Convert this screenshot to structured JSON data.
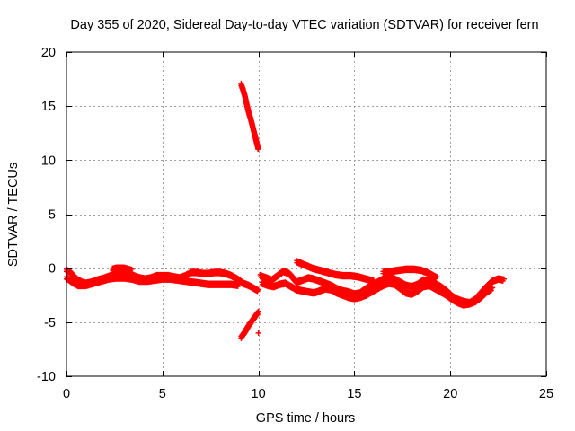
{
  "chart_data": {
    "type": "scatter",
    "title": "Day 355 of 2020, Sidereal Day-to-day VTEC variation (SDTVAR) for receiver fern",
    "xlabel": "GPS time / hours",
    "ylabel": "SDTVAR / TECUs",
    "xlim": [
      0,
      25
    ],
    "ylim": [
      -10,
      20
    ],
    "xticks": [
      0,
      5,
      10,
      15,
      20,
      25
    ],
    "yticks": [
      -10,
      -5,
      0,
      5,
      10,
      15,
      20
    ],
    "grid": true,
    "legend": "none",
    "marker": "+",
    "colors": {
      "series": "#ff0000",
      "axis": "#000000",
      "grid": "#a0a0a0"
    },
    "series": [
      {
        "name": "SDTVAR",
        "tracks": [
          {
            "x": [
              0.0,
              0.2,
              0.4,
              0.6,
              0.8,
              1.0,
              1.3,
              1.6,
              2.0,
              2.3,
              2.6,
              2.9,
              3.2,
              3.5,
              3.8,
              4.1,
              4.4,
              4.7,
              5.0,
              5.3,
              5.6,
              5.9,
              6.2,
              6.5,
              6.8,
              7.1,
              7.4,
              7.7,
              8.0,
              8.3,
              8.6,
              8.9,
              9.2,
              9.5,
              9.8,
              10.0
            ],
            "y": [
              -0.1,
              -0.3,
              -0.7,
              -1.0,
              -1.2,
              -1.3,
              -1.2,
              -1.0,
              -0.8,
              -0.6,
              -0.4,
              -0.3,
              -0.5,
              -0.6,
              -0.8,
              -0.9,
              -0.8,
              -0.6,
              -0.6,
              -0.6,
              -0.7,
              -0.8,
              -0.6,
              -0.3,
              -0.3,
              -0.4,
              -0.4,
              -0.3,
              -0.3,
              -0.4,
              -0.6,
              -0.9,
              -1.3,
              -1.5,
              -1.8,
              -2.0
            ]
          },
          {
            "x": [
              0.0,
              0.3,
              0.6,
              1.0,
              1.4,
              1.8,
              2.2,
              2.6,
              3.0,
              3.4,
              3.8,
              4.2,
              4.6,
              5.0,
              5.4,
              5.8,
              6.2,
              6.6,
              7.0,
              7.4,
              7.8,
              8.2,
              8.6,
              9.0
            ],
            "y": [
              -0.8,
              -1.2,
              -1.5,
              -1.5,
              -1.3,
              -1.1,
              -0.9,
              -0.8,
              -0.8,
              -0.9,
              -1.1,
              -1.1,
              -1.0,
              -0.9,
              -0.9,
              -1.0,
              -1.1,
              -1.2,
              -1.3,
              -1.4,
              -1.4,
              -1.4,
              -1.4,
              -1.5
            ]
          },
          {
            "x": [
              2.4,
              2.6,
              2.8,
              3.0,
              3.2,
              3.4
            ],
            "y": [
              0.0,
              0.1,
              0.1,
              0.1,
              0.0,
              -0.1
            ]
          },
          {
            "x": [
              9.1,
              9.2,
              9.3,
              9.4,
              9.5,
              9.6,
              9.7,
              9.8,
              9.9,
              10.0
            ],
            "y": [
              17.1,
              16.6,
              16.0,
              15.2,
              14.5,
              13.9,
              13.2,
              12.5,
              11.8,
              11.1
            ]
          },
          {
            "x": [
              9.1,
              9.3,
              9.5,
              9.7,
              9.9,
              10.0
            ],
            "y": [
              -6.3,
              -5.8,
              -5.2,
              -4.7,
              -4.2,
              -4.0
            ]
          },
          {
            "x": [
              10.0
            ],
            "y": [
              -6.0
            ]
          },
          {
            "x": [
              10.1,
              10.4,
              10.7,
              11.0,
              11.3,
              11.6,
              11.9,
              12.0,
              12.3,
              12.6,
              12.9,
              13.2,
              13.5,
              13.8,
              14.1,
              14.4,
              14.7,
              15.0,
              15.3,
              15.6,
              15.9,
              16.2,
              16.5,
              16.8,
              17.1,
              17.4,
              17.7,
              18.0,
              18.3,
              18.6,
              18.9,
              19.2,
              19.5,
              19.8,
              20.1,
              20.4,
              20.7,
              21.0,
              21.3,
              21.6,
              21.9,
              22.2,
              22.5,
              22.8
            ],
            "y": [
              -0.6,
              -0.8,
              -1.0,
              -0.6,
              -0.2,
              -0.4,
              -1.0,
              -1.2,
              -1.0,
              -0.8,
              -0.9,
              -1.1,
              -1.3,
              -1.5,
              -1.8,
              -2.0,
              -2.1,
              -2.3,
              -2.2,
              -1.8,
              -1.5,
              -1.2,
              -0.9,
              -0.8,
              -0.9,
              -1.2,
              -1.5,
              -1.6,
              -1.4,
              -1.0,
              -1.1,
              -1.3,
              -1.6,
              -2.0,
              -2.5,
              -2.8,
              -3.0,
              -3.1,
              -2.8,
              -2.2,
              -1.6,
              -1.1,
              -0.9,
              -1.0
            ]
          },
          {
            "x": [
              10.2,
              10.5,
              10.8,
              11.1,
              11.4,
              11.7,
              12.0,
              12.3,
              12.6,
              12.9,
              13.2,
              13.5,
              13.8,
              14.1,
              14.4,
              14.7,
              15.0,
              15.3,
              15.6,
              15.9,
              16.2,
              16.5,
              16.8,
              17.1,
              17.4,
              17.7,
              18.0,
              18.3,
              18.6,
              18.9,
              19.2,
              19.5,
              19.8,
              20.1,
              20.4,
              20.7,
              21.0,
              21.3,
              21.6,
              21.9,
              22.2
            ],
            "y": [
              -1.3,
              -1.5,
              -1.6,
              -1.4,
              -1.3,
              -1.6,
              -1.9,
              -2.0,
              -2.1,
              -2.2,
              -2.0,
              -1.8,
              -1.9,
              -2.2,
              -2.4,
              -2.6,
              -2.7,
              -2.6,
              -2.4,
              -2.1,
              -1.8,
              -1.5,
              -1.3,
              -1.4,
              -1.8,
              -2.2,
              -2.3,
              -2.0,
              -1.6,
              -1.5,
              -1.8,
              -2.1,
              -2.4,
              -2.8,
              -3.1,
              -3.3,
              -3.2,
              -3.0,
              -2.6,
              -2.1,
              -1.8
            ]
          },
          {
            "x": [
              12.0,
              12.4,
              12.8,
              13.2,
              13.6,
              14.0,
              14.4,
              14.8,
              15.2,
              15.6,
              16.0
            ],
            "y": [
              0.7,
              0.4,
              0.1,
              -0.1,
              -0.3,
              -0.5,
              -0.6,
              -0.6,
              -0.7,
              -0.9,
              -1.1
            ]
          },
          {
            "x": [
              16.5,
              16.9,
              17.3,
              17.7,
              18.1,
              18.5,
              18.9,
              19.3
            ],
            "y": [
              -0.3,
              -0.2,
              -0.1,
              0.0,
              0.0,
              -0.1,
              -0.4,
              -0.8
            ]
          }
        ]
      }
    ]
  }
}
